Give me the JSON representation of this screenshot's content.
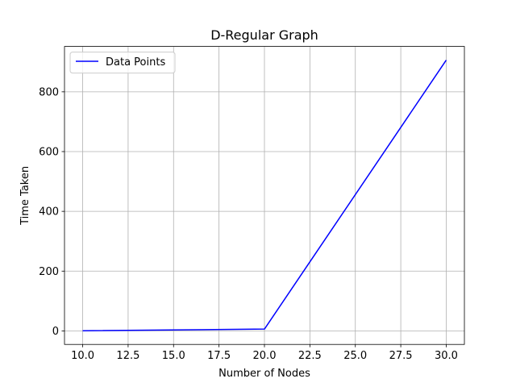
{
  "chart_data": {
    "type": "line",
    "title": "D-Regular Graph",
    "xlabel": "Number of Nodes",
    "ylabel": "Time Taken",
    "x": [
      10,
      20,
      30
    ],
    "series": [
      {
        "name": "Data Points",
        "color": "#0000ff",
        "values": [
          0.5,
          6,
          906
        ]
      }
    ],
    "xlim": [
      9,
      31
    ],
    "ylim": [
      -45.3,
      951.8
    ],
    "xticks": [
      "10.0",
      "12.5",
      "15.0",
      "17.5",
      "20.0",
      "22.5",
      "25.0",
      "27.5",
      "30.0"
    ],
    "yticks": [
      "0",
      "200",
      "400",
      "600",
      "800"
    ],
    "grid": true,
    "legend_position": "top-left"
  }
}
